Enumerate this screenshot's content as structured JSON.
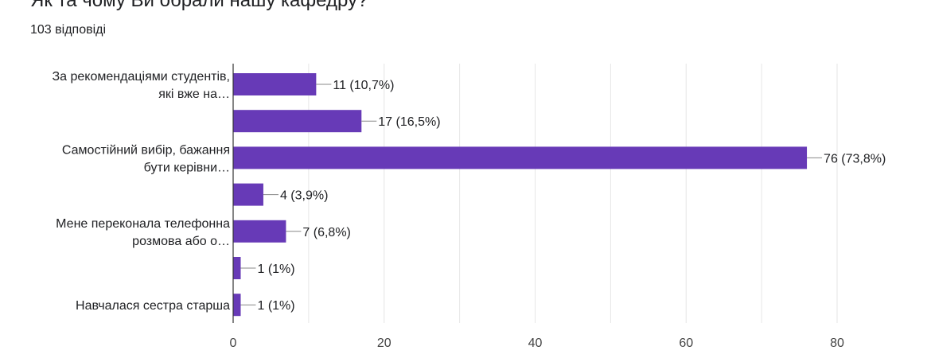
{
  "header": {
    "title": "Як та чому Ви обрали нашу кафедру?",
    "response_count": "103 відповіді"
  },
  "colors": {
    "bar": "#673ab7",
    "grid": "#e6e6e6",
    "axis": "#333333",
    "connector": "#888888"
  },
  "chart_data": {
    "type": "bar",
    "orientation": "horizontal",
    "categories": [
      [
        "За рекомендаціями студентів,",
        "які вже на…"
      ],
      [
        ""
      ],
      [
        "Самостійний вибір, бажання",
        "бути керівни…"
      ],
      [
        ""
      ],
      [
        "Мене переконала телефонна",
        "розмова або о…"
      ],
      [
        ""
      ],
      [
        "Навчалася сестра старша"
      ]
    ],
    "values": [
      11,
      17,
      76,
      4,
      7,
      1,
      1
    ],
    "value_labels": [
      "11 (10,7%)",
      "17 (16,5%)",
      "76 (73,8%)",
      "4 (3,9%)",
      "7 (6,8%)",
      "1 (1%)",
      "1 (1%)"
    ],
    "xlim": [
      0,
      80
    ],
    "xticks": [
      0,
      20,
      40,
      60,
      80
    ],
    "grid": true,
    "legend": "none"
  }
}
